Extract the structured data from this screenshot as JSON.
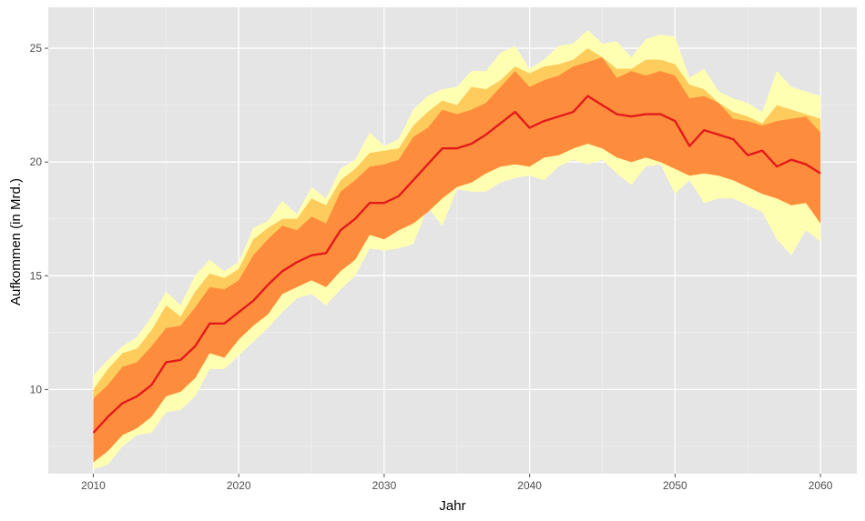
{
  "chart_data": {
    "type": "area",
    "xlabel": "Jahr",
    "ylabel": "Aufkommen (in Mrd.)",
    "x": [
      2010,
      2011,
      2012,
      2013,
      2014,
      2015,
      2016,
      2017,
      2018,
      2019,
      2020,
      2021,
      2022,
      2023,
      2024,
      2025,
      2026,
      2027,
      2028,
      2029,
      2030,
      2031,
      2032,
      2033,
      2034,
      2035,
      2036,
      2037,
      2038,
      2039,
      2040,
      2041,
      2042,
      2043,
      2044,
      2045,
      2046,
      2047,
      2048,
      2049,
      2050,
      2051,
      2052,
      2053,
      2054,
      2055,
      2056,
      2057,
      2058,
      2059,
      2060
    ],
    "xlim": [
      2006.9,
      2062.5
    ],
    "ylim": [
      6.3,
      26.8
    ],
    "x_ticks": [
      2010,
      2020,
      2030,
      2040,
      2050,
      2060
    ],
    "y_ticks": [
      10,
      15,
      20,
      25
    ],
    "grid": true,
    "colors": {
      "panel": "#e5e5e5",
      "grid_major": "#ffffff",
      "grid_minor": "#f2f2f2",
      "band_outer": "#ffffb2",
      "band_middle": "#fecc5c",
      "band_inner": "#fd8d3c",
      "median_line": "#e31a1c"
    },
    "bands": [
      {
        "level": "outer",
        "upper": [
          10.6,
          11.3,
          11.9,
          12.3,
          13.2,
          14.3,
          13.7,
          15.0,
          15.7,
          15.2,
          15.6,
          17.1,
          17.4,
          18.3,
          17.7,
          18.9,
          18.4,
          19.7,
          20.1,
          21.3,
          20.7,
          21.0,
          22.3,
          22.9,
          23.2,
          23.3,
          24.0,
          24.0,
          24.8,
          25.1,
          24.1,
          24.5,
          25.1,
          25.2,
          25.8,
          25.2,
          25.3,
          24.6,
          25.4,
          25.6,
          25.5,
          23.7,
          24.1,
          23.1,
          22.8,
          22.6,
          22.2,
          24.0,
          23.3,
          23.1,
          22.9
        ],
        "lower": [
          6.5,
          6.7,
          7.5,
          8.0,
          8.1,
          9.0,
          9.1,
          9.7,
          10.9,
          10.9,
          11.5,
          12.1,
          12.7,
          13.4,
          14.0,
          14.2,
          13.7,
          14.4,
          15.0,
          16.2,
          16.1,
          16.2,
          16.4,
          18.0,
          17.2,
          18.8,
          18.7,
          18.7,
          19.1,
          19.3,
          19.4,
          19.2,
          19.8,
          20.1,
          19.9,
          20.1,
          19.5,
          19.0,
          19.8,
          19.9,
          18.6,
          19.2,
          18.2,
          18.4,
          18.4,
          18.1,
          17.8,
          16.6,
          15.9,
          17.0,
          16.5
        ]
      },
      {
        "level": "middle",
        "upper": [
          10.0,
          10.9,
          11.6,
          11.8,
          12.6,
          13.7,
          13.2,
          14.3,
          15.1,
          14.9,
          15.3,
          16.6,
          17.1,
          17.5,
          17.5,
          18.4,
          18.1,
          19.2,
          19.7,
          20.4,
          20.5,
          20.6,
          21.6,
          22.2,
          22.7,
          22.5,
          23.3,
          23.2,
          23.6,
          24.2,
          23.9,
          24.2,
          24.3,
          24.5,
          25.0,
          24.6,
          24.1,
          24.1,
          24.5,
          24.5,
          24.3,
          23.4,
          23.2,
          22.6,
          22.2,
          22.0,
          21.7,
          22.5,
          22.3,
          22.1,
          21.9
        ]
      },
      {
        "level": "inner",
        "upper": [
          9.6,
          10.2,
          11.0,
          11.2,
          11.9,
          12.7,
          12.8,
          13.6,
          14.5,
          14.4,
          14.8,
          15.9,
          16.6,
          17.2,
          17.0,
          17.6,
          17.3,
          18.7,
          19.2,
          19.8,
          19.9,
          20.1,
          21.1,
          21.5,
          22.3,
          22.1,
          22.3,
          22.6,
          23.3,
          24.0,
          23.3,
          23.6,
          23.8,
          24.2,
          24.4,
          24.6,
          23.7,
          24.0,
          23.8,
          24.0,
          23.8,
          22.8,
          22.9,
          22.6,
          21.9,
          21.8,
          21.6,
          21.8,
          21.9,
          22.0,
          21.3
        ],
        "lower": [
          6.8,
          7.3,
          8.0,
          8.3,
          8.8,
          9.7,
          9.9,
          10.5,
          11.6,
          11.4,
          12.2,
          12.8,
          13.3,
          14.2,
          14.5,
          14.8,
          14.5,
          15.2,
          15.7,
          16.8,
          16.6,
          17.0,
          17.3,
          17.8,
          18.4,
          18.9,
          19.1,
          19.5,
          19.8,
          19.9,
          19.8,
          20.2,
          20.3,
          20.6,
          20.8,
          20.6,
          20.2,
          20.0,
          20.2,
          20.0,
          19.7,
          19.4,
          19.5,
          19.4,
          19.2,
          18.9,
          18.6,
          18.4,
          18.1,
          18.2,
          17.3
        ]
      }
    ],
    "series": [
      {
        "values": [
          8.1,
          8.8,
          9.4,
          9.7,
          10.2,
          11.2,
          11.3,
          11.9,
          12.9,
          12.9,
          13.4,
          13.9,
          14.6,
          15.2,
          15.6,
          15.9,
          16.0,
          17.0,
          17.5,
          18.2,
          18.2,
          18.5,
          19.2,
          19.9,
          20.6,
          20.6,
          20.8,
          21.2,
          21.7,
          22.2,
          21.5,
          21.8,
          22.0,
          22.2,
          22.9,
          22.5,
          22.1,
          22.0,
          22.1,
          22.1,
          21.8,
          20.7,
          21.4,
          21.2,
          21.0,
          20.3,
          20.5,
          19.8,
          20.1,
          19.9,
          19.5
        ]
      }
    ]
  }
}
